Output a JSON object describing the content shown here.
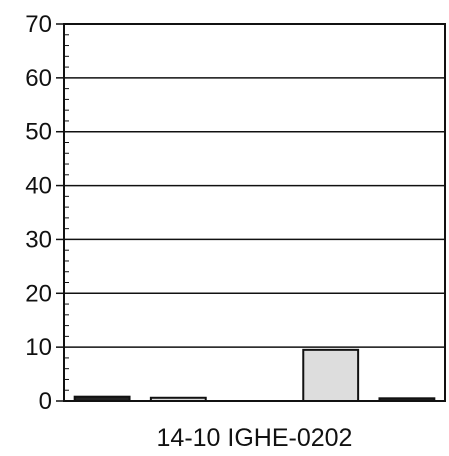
{
  "chart_data": {
    "type": "bar",
    "title": "",
    "xlabel": "14-10 IGHE-0202",
    "ylabel": "",
    "ylim": [
      0,
      70
    ],
    "yticks": [
      0,
      10,
      20,
      30,
      40,
      50,
      60,
      70
    ],
    "grid": true,
    "legend": "none",
    "categories": [
      "",
      "",
      "",
      "",
      ""
    ],
    "series": [
      {
        "values": [
          0.8,
          0.6,
          0,
          9.5,
          0.5
        ]
      }
    ],
    "bar_colors": [
      "#222222",
      "#dddddd",
      "#222222",
      "#dddddd",
      "#222222"
    ]
  }
}
